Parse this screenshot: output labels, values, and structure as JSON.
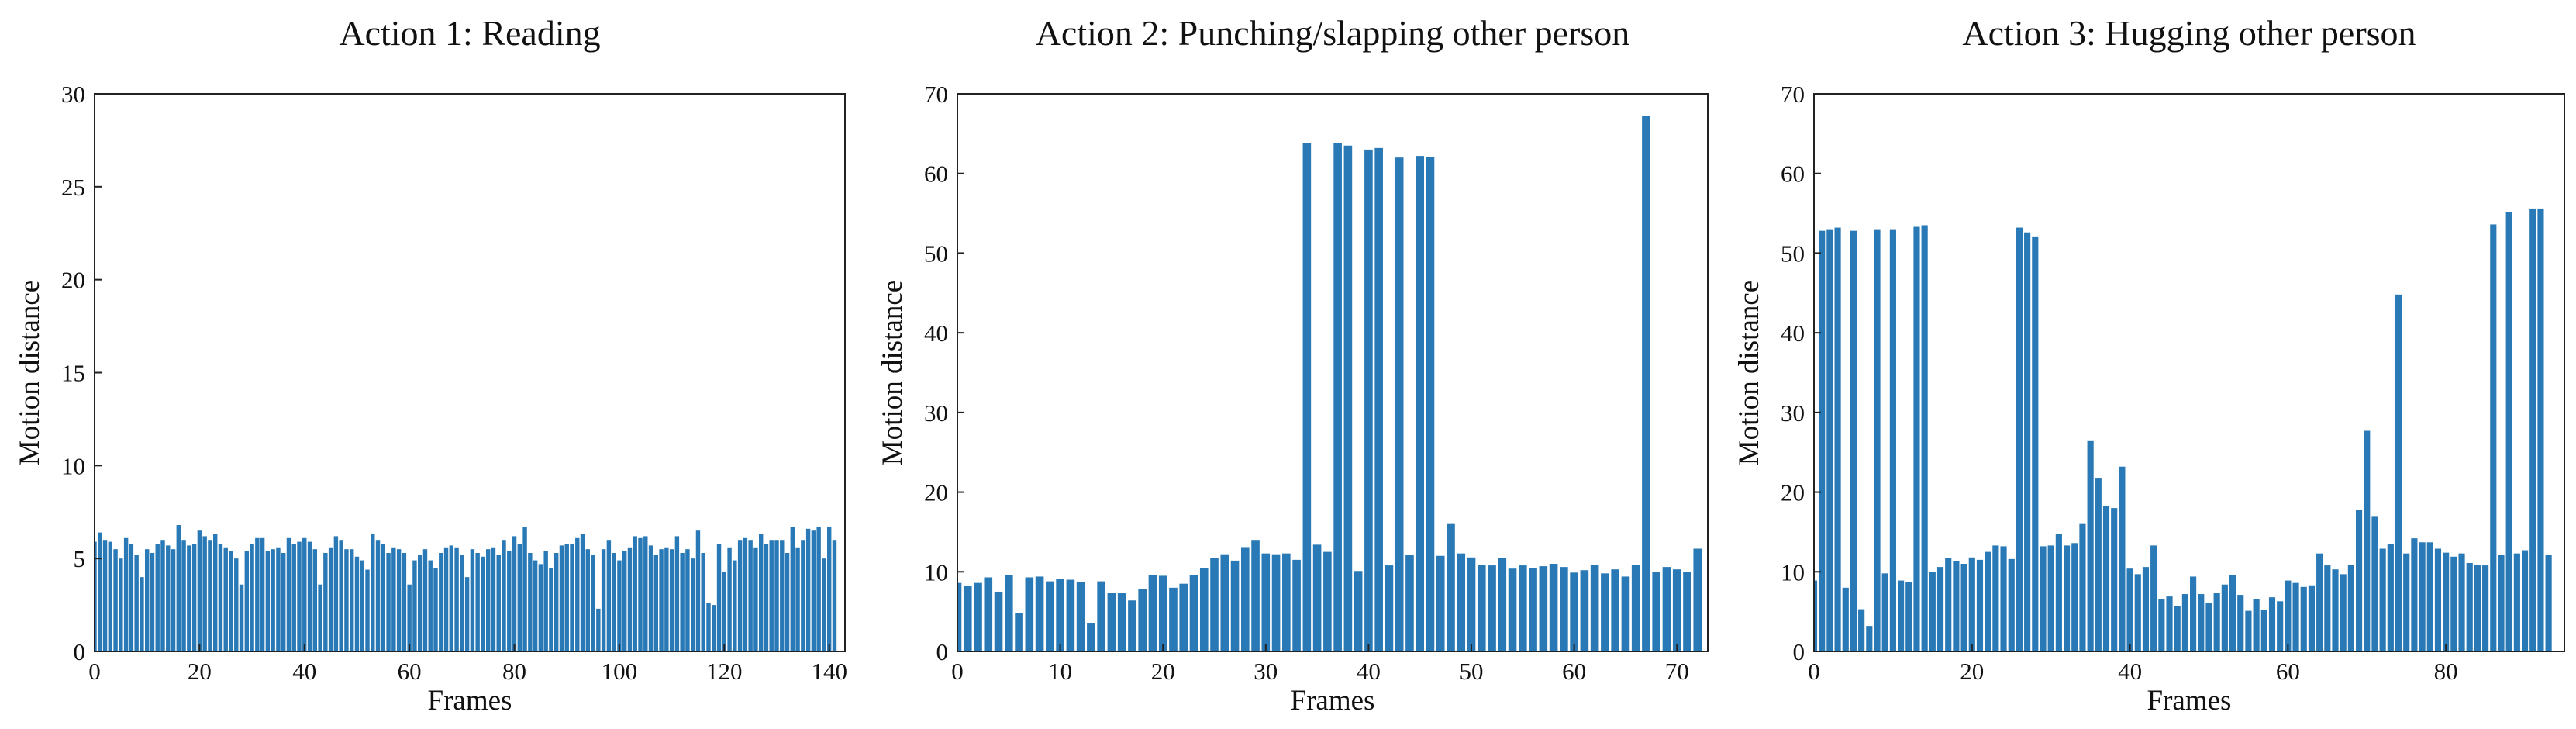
{
  "chart_data": [
    {
      "type": "bar",
      "title": "Action 1: Reading",
      "xlabel": "Frames",
      "ylabel": "Motion distance",
      "xlim": [
        0,
        143
      ],
      "ylim": [
        0,
        30
      ],
      "xticks": [
        0,
        20,
        40,
        60,
        80,
        100,
        120,
        140
      ],
      "yticks": [
        0,
        5,
        10,
        15,
        20,
        25,
        30
      ],
      "color": "#2879b5",
      "grid": false,
      "x_start": 0,
      "values": [
        5.9,
        6.4,
        6.0,
        5.9,
        5.5,
        5.0,
        6.1,
        5.8,
        5.2,
        4.0,
        5.5,
        5.3,
        5.8,
        6.0,
        5.7,
        5.5,
        6.8,
        6.0,
        5.7,
        5.8,
        6.5,
        6.2,
        6.0,
        6.3,
        5.8,
        5.6,
        5.4,
        5.0,
        3.6,
        5.4,
        5.8,
        6.1,
        6.1,
        5.4,
        5.5,
        5.6,
        5.3,
        6.1,
        5.8,
        5.9,
        6.1,
        5.9,
        5.5,
        3.6,
        5.3,
        5.6,
        6.2,
        6.0,
        5.5,
        5.5,
        5.1,
        4.9,
        4.4,
        6.3,
        6.0,
        5.8,
        5.3,
        5.6,
        5.5,
        5.3,
        3.6,
        4.9,
        5.2,
        5.5,
        4.9,
        4.5,
        5.3,
        5.6,
        5.7,
        5.6,
        5.2,
        4.0,
        5.5,
        5.3,
        5.1,
        5.5,
        5.6,
        5.2,
        6.0,
        5.4,
        6.2,
        5.8,
        6.7,
        5.3,
        4.9,
        4.7,
        5.4,
        4.5,
        5.3,
        5.7,
        5.8,
        5.8,
        6.1,
        6.3,
        5.5,
        5.2,
        2.3,
        5.5,
        6.0,
        5.3,
        4.9,
        5.4,
        5.6,
        6.2,
        6.1,
        6.2,
        5.7,
        5.2,
        5.5,
        5.6,
        5.5,
        6.2,
        5.3,
        5.5,
        5.0,
        6.5,
        5.3,
        2.6,
        2.5,
        5.8,
        4.3,
        5.6,
        4.9,
        6.0,
        6.1,
        6.0,
        5.6,
        6.3,
        5.8,
        6.0,
        6.0,
        6.0,
        5.3,
        6.7,
        5.6,
        6.0,
        6.6,
        6.5,
        6.7,
        5.0,
        6.7,
        6.0
      ]
    },
    {
      "type": "bar",
      "title": "Action 2: Punching/slapping other person",
      "xlabel": "Frames",
      "ylabel": "Motion distance",
      "xlim": [
        0,
        73
      ],
      "ylim": [
        0,
        70
      ],
      "xticks": [
        0,
        10,
        20,
        30,
        40,
        50,
        60,
        70
      ],
      "yticks": [
        0,
        10,
        20,
        30,
        40,
        50,
        60,
        70
      ],
      "color": "#2879b5",
      "grid": false,
      "x_start": 0,
      "values": [
        8.6,
        8.2,
        8.6,
        9.3,
        7.5,
        9.6,
        4.8,
        9.3,
        9.4,
        8.8,
        9.1,
        9.0,
        8.7,
        3.6,
        8.8,
        7.4,
        7.3,
        6.4,
        7.8,
        9.6,
        9.5,
        8.0,
        8.5,
        9.6,
        10.5,
        11.7,
        12.2,
        11.4,
        13.1,
        14.0,
        12.3,
        12.2,
        12.3,
        11.5,
        63.8,
        13.4,
        12.5,
        63.8,
        63.5,
        10.1,
        63.0,
        63.2,
        10.8,
        62.0,
        12.1,
        62.2,
        62.1,
        12.0,
        16.0,
        12.3,
        11.8,
        10.9,
        10.8,
        11.7,
        10.4,
        10.8,
        10.5,
        10.7,
        11.0,
        10.6,
        9.9,
        10.2,
        10.9,
        9.8,
        10.3,
        9.4,
        10.9,
        67.2,
        10.0,
        10.6,
        10.3,
        10.0,
        12.9
      ]
    },
    {
      "type": "bar",
      "title": "Action 3: Hugging other person",
      "xlabel": "Frames",
      "ylabel": "Motion distance",
      "xlim": [
        0,
        95
      ],
      "ylim": [
        0,
        70
      ],
      "xticks": [
        0,
        20,
        40,
        60,
        80
      ],
      "yticks": [
        0,
        10,
        20,
        30,
        40,
        50,
        60,
        70
      ],
      "color": "#2879b5",
      "grid": false,
      "x_start": 0,
      "values": [
        8.9,
        52.8,
        53.0,
        53.2,
        8.0,
        52.8,
        5.3,
        3.2,
        53.0,
        9.8,
        53.0,
        8.9,
        8.7,
        53.3,
        53.5,
        10.0,
        10.6,
        11.7,
        11.3,
        11.0,
        11.8,
        11.5,
        12.5,
        13.3,
        13.2,
        11.6,
        53.2,
        52.6,
        52.1,
        13.2,
        13.3,
        14.8,
        13.3,
        13.6,
        16.0,
        26.5,
        21.8,
        18.3,
        18.0,
        23.2,
        10.4,
        9.7,
        10.6,
        13.3,
        6.6,
        6.9,
        5.7,
        7.2,
        9.4,
        7.2,
        6.1,
        7.3,
        8.4,
        9.6,
        7.1,
        5.1,
        6.6,
        5.2,
        6.8,
        6.3,
        8.9,
        8.6,
        8.1,
        8.3,
        12.3,
        10.8,
        10.3,
        9.7,
        10.9,
        17.8,
        27.7,
        17.0,
        12.9,
        13.5,
        44.8,
        12.3,
        14.2,
        13.7,
        13.7,
        12.9,
        12.4,
        11.9,
        12.3,
        11.1,
        10.9,
        10.8,
        53.6,
        12.1,
        55.2,
        12.3,
        12.7,
        55.6,
        55.6,
        12.1
      ]
    }
  ]
}
